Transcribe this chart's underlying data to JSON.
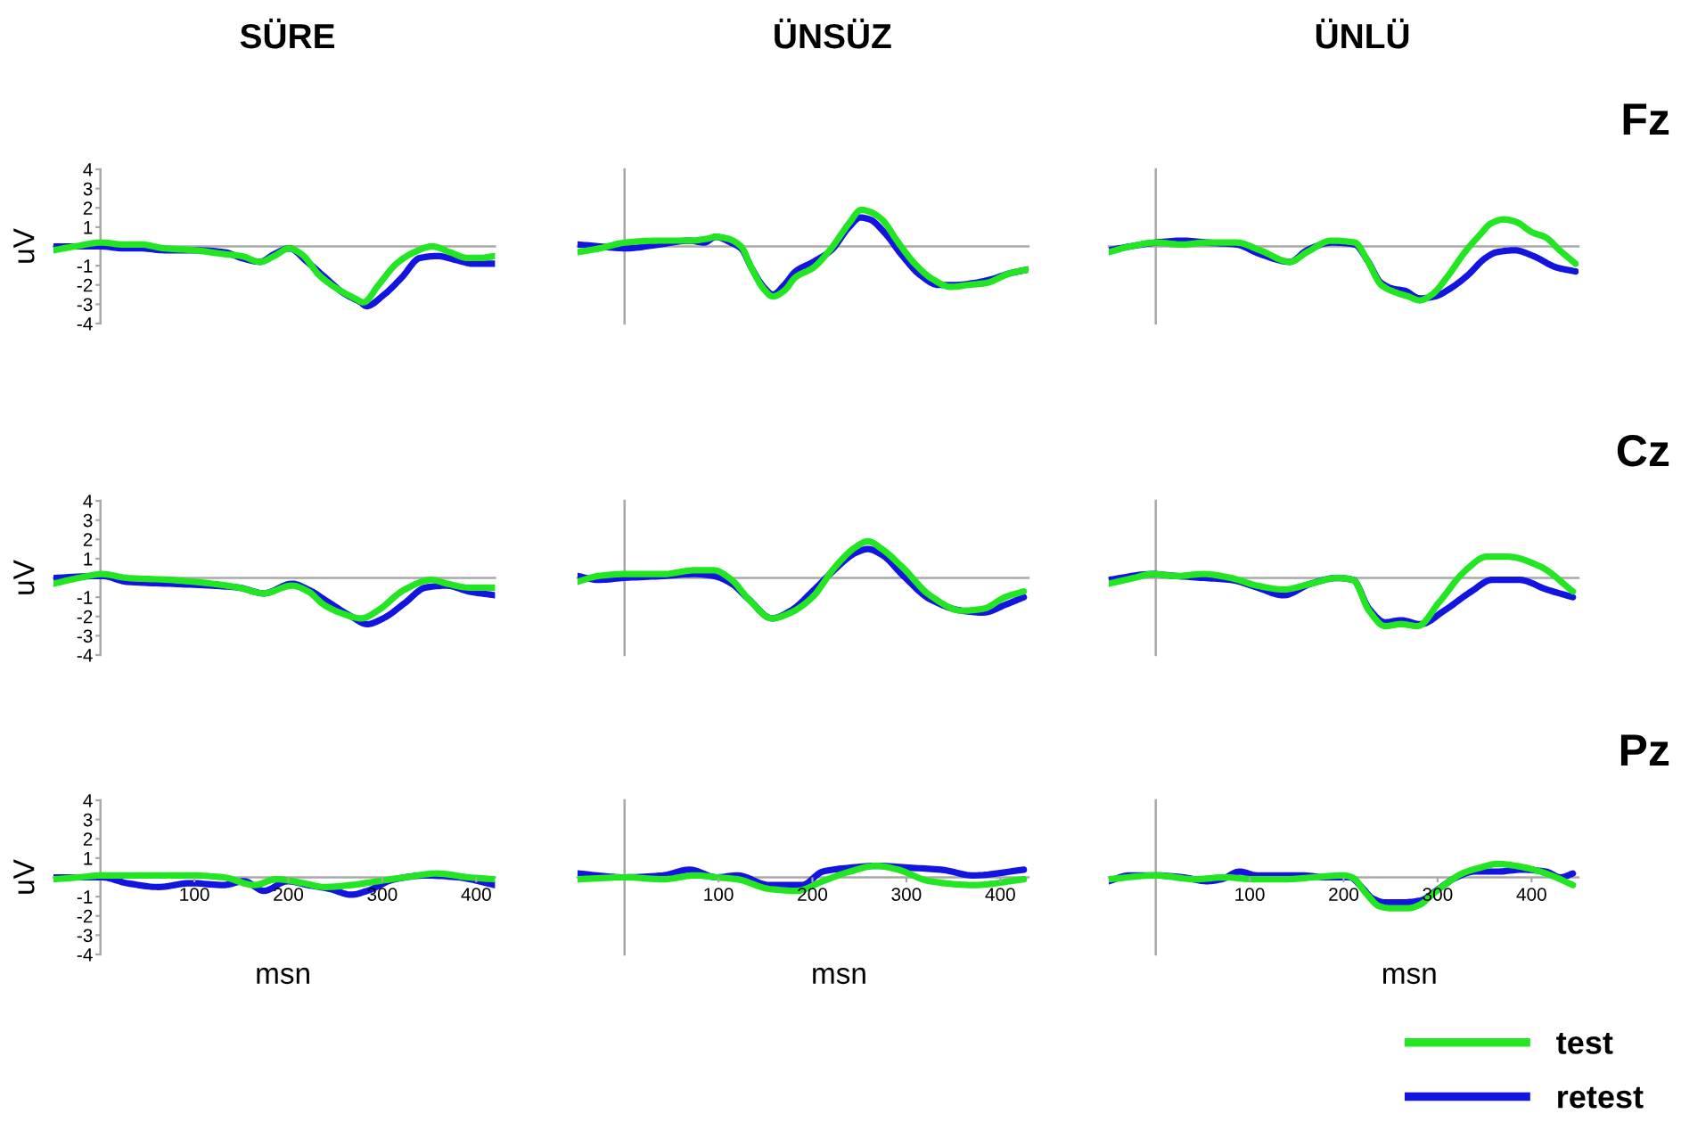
{
  "chart_data": [
    {
      "type": "line",
      "title": "SÜRE",
      "ylabel": "uV",
      "xlim": [
        -50,
        420
      ],
      "ylim": [
        -4,
        4
      ],
      "xticks": [
        100,
        200,
        300,
        400
      ],
      "yticks": [
        -4,
        -3,
        -2,
        -1,
        1,
        2,
        3,
        4
      ],
      "tick_labels": "y",
      "series": [
        {
          "color": "#22e622",
          "x": [
            -50,
            -27,
            1,
            24,
            43,
            68,
            100,
            132,
            150,
            170,
            185,
            201,
            214,
            233,
            252,
            271,
            280,
            296,
            315,
            334,
            353,
            372,
            391,
            404,
            420
          ],
          "values": [
            -0.2,
            0,
            0.2,
            0.1,
            0.1,
            -0.1,
            -0.2,
            -0.4,
            -0.5,
            -0.8,
            -0.5,
            -0.1,
            -0.4,
            -1.5,
            -2.2,
            -2.7,
            -2.9,
            -2.0,
            -0.9,
            -0.3,
            0,
            -0.3,
            -0.6,
            -0.6,
            -0.5
          ]
        },
        {
          "color": "#1414e0",
          "x": [
            -50,
            -27,
            1,
            24,
            43,
            68,
            100,
            132,
            150,
            170,
            185,
            201,
            220,
            239,
            258,
            277,
            283,
            302,
            321,
            340,
            359,
            378,
            397,
            420
          ],
          "values": [
            0,
            0,
            0,
            -0.1,
            -0.1,
            -0.2,
            -0.2,
            -0.3,
            -0.6,
            -0.8,
            -0.4,
            -0.1,
            -0.8,
            -1.6,
            -2.4,
            -2.9,
            -3.1,
            -2.5,
            -1.6,
            -0.6,
            -0.5,
            -0.7,
            -0.9,
            -0.9
          ]
        }
      ]
    },
    {
      "type": "line",
      "title": "ÜNSÜZ",
      "xlim": [
        -50,
        430
      ],
      "ylim": [
        -4,
        4
      ],
      "xticks": [
        100,
        200,
        300,
        400
      ],
      "yticks": [
        -4,
        -3,
        -2,
        -1,
        1,
        2,
        3,
        4
      ],
      "tick_labels": false,
      "series": [
        {
          "color": "#22e622",
          "x": [
            -50,
            -26,
            1,
            37,
            69,
            88,
            97,
            110,
            124,
            135,
            148,
            158,
            170,
            182,
            201,
            220,
            239,
            252,
            261,
            274,
            290,
            309,
            328,
            347,
            366,
            385,
            410,
            429
          ],
          "values": [
            -0.3,
            -0.1,
            0.2,
            0.3,
            0.3,
            0.4,
            0.5,
            0.4,
            0,
            -1.1,
            -2.2,
            -2.6,
            -2.3,
            -1.6,
            -1.1,
            -0.1,
            1.2,
            1.9,
            1.8,
            1.4,
            0.3,
            -0.9,
            -1.7,
            -2.1,
            -2.0,
            -1.9,
            -1.4,
            -1.2
          ]
        },
        {
          "color": "#1414e0",
          "x": [
            -50,
            -26,
            1,
            37,
            69,
            85,
            97,
            113,
            124,
            135,
            148,
            158,
            170,
            182,
            201,
            220,
            239,
            251,
            261,
            277,
            296,
            315,
            334,
            353,
            372,
            391,
            410,
            429
          ],
          "values": [
            0.1,
            0,
            -0.1,
            0.1,
            0.3,
            0.2,
            0.5,
            0.2,
            -0.1,
            -1.1,
            -2.1,
            -2.5,
            -2.0,
            -1.3,
            -0.8,
            -0.2,
            1.0,
            1.5,
            1.4,
            0.7,
            -0.5,
            -1.5,
            -2.0,
            -2.0,
            -1.9,
            -1.7,
            -1.4,
            -1.2
          ]
        }
      ]
    },
    {
      "type": "line",
      "title": "ÜNLÜ",
      "annotations": [
        "Fz"
      ],
      "xlim": [
        -50,
        450
      ],
      "ylim": [
        -4,
        4
      ],
      "xticks": [
        100,
        200,
        300,
        400
      ],
      "yticks": [
        -4,
        -3,
        -2,
        -1,
        1,
        2,
        3,
        4
      ],
      "tick_labels": false,
      "series": [
        {
          "color": "#22e622",
          "x": [
            -50,
            -27,
            0,
            28,
            54,
            86,
            111,
            143,
            161,
            187,
            212,
            225,
            240,
            256,
            269,
            281,
            294,
            310,
            329,
            345,
            357,
            370,
            382,
            402,
            414,
            430,
            447
          ],
          "values": [
            -0.3,
            0,
            0.2,
            0.1,
            0.2,
            0.2,
            -0.2,
            -0.8,
            -0.3,
            0.3,
            0.2,
            -0.7,
            -2.0,
            -2.4,
            -2.6,
            -2.8,
            -2.5,
            -1.6,
            -0.3,
            0.6,
            1.2,
            1.4,
            1.3,
            0.7,
            0.5,
            -0.2,
            -0.9
          ]
        },
        {
          "color": "#1414e0",
          "x": [
            -50,
            -27,
            0,
            28,
            54,
            86,
            111,
            143,
            161,
            187,
            212,
            225,
            240,
            253,
            265,
            281,
            297,
            313,
            332,
            351,
            363,
            382,
            402,
            427,
            447
          ],
          "values": [
            -0.2,
            0,
            0.2,
            0.3,
            0.2,
            0.1,
            -0.4,
            -0.8,
            -0.2,
            0.2,
            0.1,
            -0.7,
            -1.9,
            -2.2,
            -2.3,
            -2.7,
            -2.6,
            -2.2,
            -1.5,
            -0.6,
            -0.3,
            -0.2,
            -0.5,
            -1.1,
            -1.3
          ]
        }
      ]
    },
    {
      "type": "line",
      "ylabel": "uV",
      "xlim": [
        -50,
        420
      ],
      "ylim": [
        -4,
        4
      ],
      "xticks": [
        100,
        200,
        300,
        400
      ],
      "yticks": [
        -4,
        -3,
        -2,
        -1,
        1,
        2,
        3,
        4
      ],
      "tick_labels": "y",
      "series": [
        {
          "color": "#22e622",
          "x": [
            -50,
            -23,
            2,
            28,
            73,
            119,
            147,
            174,
            204,
            221,
            238,
            255,
            278,
            295,
            324,
            352,
            369,
            392,
            420
          ],
          "values": [
            -0.3,
            0,
            0.2,
            0,
            -0.1,
            -0.3,
            -0.5,
            -0.8,
            -0.4,
            -0.7,
            -1.4,
            -1.8,
            -2.1,
            -1.7,
            -0.6,
            -0.1,
            -0.3,
            -0.5,
            -0.5
          ]
        },
        {
          "color": "#1414e0",
          "x": [
            -50,
            2,
            28,
            73,
            119,
            147,
            174,
            204,
            221,
            244,
            267,
            284,
            301,
            324,
            346,
            369,
            392,
            420
          ],
          "values": [
            0,
            0.1,
            -0.2,
            -0.3,
            -0.4,
            -0.5,
            -0.8,
            -0.3,
            -0.6,
            -1.3,
            -2.0,
            -2.4,
            -2.1,
            -1.3,
            -0.5,
            -0.4,
            -0.7,
            -0.9
          ]
        }
      ]
    },
    {
      "type": "line",
      "xlim": [
        -50,
        430
      ],
      "ylim": [
        -4,
        4
      ],
      "xticks": [
        100,
        200,
        300,
        400
      ],
      "yticks": [
        -4,
        -3,
        -2,
        -1,
        1,
        2,
        3,
        4
      ],
      "tick_labels": false,
      "series": [
        {
          "color": "#22e622",
          "x": [
            -50,
            -28,
            0,
            41,
            75,
            95,
            114,
            132,
            157,
            177,
            200,
            223,
            246,
            259,
            274,
            297,
            325,
            359,
            382,
            405,
            425
          ],
          "values": [
            -0.2,
            0.1,
            0.2,
            0.2,
            0.4,
            0.4,
            -0.1,
            -1.1,
            -2.1,
            -1.8,
            -1.0,
            0.5,
            1.6,
            1.9,
            1.5,
            0.5,
            -0.9,
            -1.7,
            -1.6,
            -1.0,
            -0.7
          ]
        },
        {
          "color": "#1414e0",
          "x": [
            -50,
            -28,
            0,
            41,
            75,
            95,
            114,
            132,
            157,
            177,
            200,
            223,
            246,
            259,
            274,
            297,
            325,
            359,
            382,
            405,
            425
          ],
          "values": [
            0.1,
            -0.1,
            0,
            0.1,
            0.2,
            0.1,
            -0.3,
            -1.1,
            -2.1,
            -1.7,
            -0.7,
            0.4,
            1.3,
            1.5,
            1.2,
            0.1,
            -1.1,
            -1.7,
            -1.8,
            -1.4,
            -1.0
          ]
        }
      ]
    },
    {
      "type": "line",
      "annotations": [
        "Cz"
      ],
      "xlim": [
        -50,
        450
      ],
      "ylim": [
        -4,
        4
      ],
      "xticks": [
        100,
        200,
        300,
        400
      ],
      "yticks": [
        -4,
        -3,
        -2,
        -1,
        1,
        2,
        3,
        4
      ],
      "tick_labels": false,
      "series": [
        {
          "color": "#22e622",
          "x": [
            -50,
            -23,
            -4,
            22,
            51,
            80,
            108,
            136,
            165,
            193,
            210,
            227,
            244,
            261,
            279,
            301,
            330,
            352,
            375,
            409,
            444
          ],
          "values": [
            -0.3,
            0,
            0.2,
            0.1,
            0.2,
            0,
            -0.4,
            -0.6,
            -0.3,
            0,
            -0.1,
            -1.7,
            -2.5,
            -2.4,
            -2.5,
            -1.3,
            0.4,
            1.1,
            1.1,
            0.6,
            -0.7
          ]
        },
        {
          "color": "#1414e0",
          "x": [
            -50,
            -4,
            22,
            51,
            80,
            108,
            136,
            165,
            193,
            210,
            227,
            244,
            261,
            282,
            307,
            336,
            358,
            387,
            416,
            444
          ],
          "values": [
            -0.1,
            0.2,
            0.1,
            0,
            -0.1,
            -0.5,
            -0.9,
            -0.3,
            0,
            -0.1,
            -1.6,
            -2.3,
            -2.2,
            -2.4,
            -1.7,
            -0.7,
            -0.1,
            -0.1,
            -0.6,
            -1.0
          ]
        }
      ]
    },
    {
      "type": "line",
      "ylabel": "uV",
      "xlabel": "msn",
      "xlim": [
        -50,
        420
      ],
      "ylim": [
        -4,
        4
      ],
      "xticks": [
        100,
        200,
        300,
        400
      ],
      "yticks": [
        -4,
        -3,
        -2,
        -1,
        1,
        2,
        3,
        4
      ],
      "series": [
        {
          "color": "#22e622",
          "x": [
            -50,
            -23,
            2,
            52,
            96,
            131,
            164,
            187,
            216,
            238,
            267,
            295,
            324,
            358,
            392,
            420
          ],
          "values": [
            -0.1,
            0,
            0.1,
            0.1,
            0.1,
            0,
            -0.4,
            -0.1,
            -0.3,
            -0.5,
            -0.4,
            -0.2,
            0,
            0.2,
            0,
            -0.1
          ]
        },
        {
          "color": "#1414e0",
          "x": [
            -50,
            2,
            28,
            62,
            96,
            131,
            153,
            174,
            199,
            221,
            244,
            267,
            284,
            313,
            346,
            381,
            420
          ],
          "values": [
            0,
            0,
            -0.3,
            -0.5,
            -0.3,
            -0.4,
            -0.2,
            -0.7,
            -0.2,
            -0.4,
            -0.6,
            -0.9,
            -0.7,
            -0.1,
            0.1,
            0,
            -0.4
          ]
        }
      ]
    },
    {
      "type": "line",
      "xlabel": "msn",
      "xlim": [
        -50,
        430
      ],
      "ylim": [
        -4,
        4
      ],
      "xticks": [
        100,
        200,
        300,
        400
      ],
      "yticks": [
        -4,
        -3,
        -2,
        -1,
        1,
        2,
        3,
        4
      ],
      "tick_labels": "x",
      "series": [
        {
          "color": "#22e622",
          "x": [
            -50,
            0,
            41,
            75,
            98,
            120,
            154,
            183,
            211,
            240,
            268,
            291,
            325,
            371,
            425
          ],
          "values": [
            -0.1,
            0,
            -0.1,
            0.1,
            0,
            -0.1,
            -0.6,
            -0.7,
            -0.2,
            0.3,
            0.6,
            0.4,
            -0.2,
            -0.4,
            -0.1
          ]
        },
        {
          "color": "#1414e0",
          "x": [
            -50,
            0,
            41,
            69,
            98,
            120,
            154,
            189,
            211,
            240,
            268,
            303,
            337,
            371,
            425
          ],
          "values": [
            0.2,
            0,
            0.1,
            0.4,
            0,
            0.1,
            -0.4,
            -0.4,
            0.3,
            0.5,
            0.6,
            0.5,
            0.4,
            0.1,
            0.4
          ]
        }
      ]
    },
    {
      "type": "line",
      "xlabel": "msn",
      "annotations": [
        "Pz"
      ],
      "xlim": [
        -50,
        450
      ],
      "ylim": [
        -4,
        4
      ],
      "xticks": [
        100,
        200,
        300,
        400
      ],
      "yticks": [
        -4,
        -3,
        -2,
        -1,
        1,
        2,
        3,
        4
      ],
      "tick_labels": "x",
      "legend": "bottom right",
      "series": [
        {
          "name": "test",
          "color": "#22e622",
          "x": [
            -50,
            0,
            42,
            73,
            105,
            137,
            168,
            200,
            209,
            225,
            238,
            250,
            269,
            282,
            294,
            310,
            326,
            345,
            364,
            383,
            402,
            421,
            444
          ],
          "values": [
            -0.1,
            0.1,
            -0.1,
            0,
            -0.1,
            -0.1,
            0,
            0.1,
            0,
            -0.9,
            -1.5,
            -1.6,
            -1.6,
            -1.4,
            -0.9,
            -0.3,
            0.2,
            0.5,
            0.7,
            0.6,
            0.4,
            0.1,
            -0.4
          ]
        },
        {
          "name": "retest",
          "color": "#1414e0",
          "x": [
            -50,
            -28,
            0,
            29,
            54,
            70,
            89,
            108,
            130,
            156,
            181,
            207,
            219,
            231,
            244,
            263,
            282,
            301,
            320,
            339,
            364,
            389,
            415,
            431,
            444
          ],
          "values": [
            -0.2,
            0.1,
            0.1,
            0,
            -0.2,
            -0.1,
            0.3,
            0.1,
            0.1,
            0.1,
            0,
            0,
            -0.5,
            -1.1,
            -1.3,
            -1.3,
            -1.2,
            -0.6,
            0,
            0.3,
            0.3,
            0.4,
            0.3,
            0,
            0.2
          ]
        }
      ]
    }
  ]
}
